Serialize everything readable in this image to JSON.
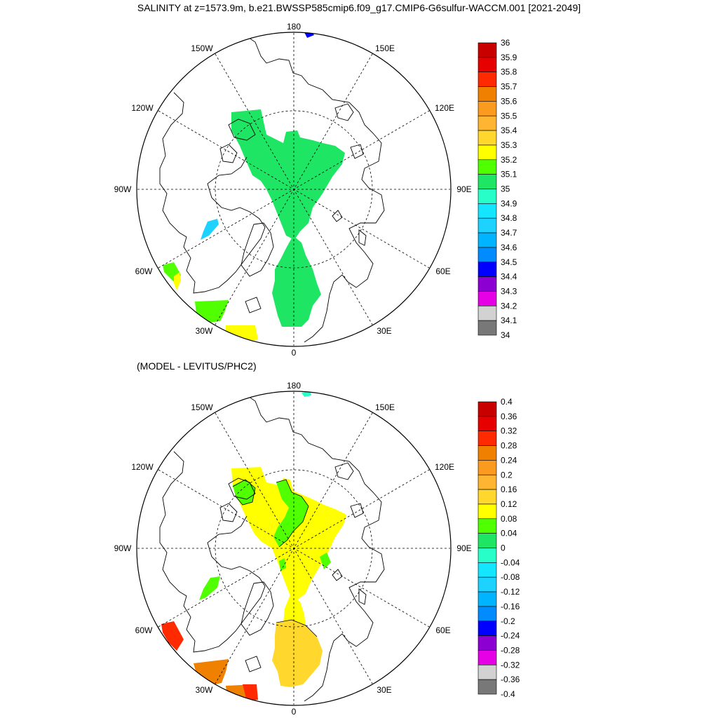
{
  "title": "SALINITY at z=1573.9m, b.e21.BWSSP585cmip6.f09_g17.CMIP6-G6sulfur-WACCM.001 [2021-2049]",
  "subtitle": "(MODEL - LEVITUS/PHC2)",
  "longitude_labels": {
    "lon_180": "180",
    "lon_150E": "150E",
    "lon_120E": "120E",
    "lon_90E": "90E",
    "lon_60E": "60E",
    "lon_30E": "30E",
    "lon_0": "0",
    "lon_30W": "30W",
    "lon_60W": "60W",
    "lon_90W": "90W",
    "lon_120W": "120W",
    "lon_150W": "150W"
  },
  "chart_data": [
    {
      "type": "heatmap",
      "projection": "north polar stereographic",
      "variable": "SALINITY",
      "depth": "z=1573.9m",
      "colorbar": {
        "labels": [
          "36",
          "35.9",
          "35.8",
          "35.7",
          "35.6",
          "35.5",
          "35.4",
          "35.3",
          "35.2",
          "35.1",
          "35",
          "34.9",
          "34.8",
          "34.7",
          "34.6",
          "34.5",
          "34.4",
          "34.3",
          "34.2",
          "34.1",
          "34"
        ],
        "colors": [
          "#c80000",
          "#e60000",
          "#ff2a00",
          "#f08000",
          "#fa9a1e",
          "#ffb432",
          "#ffd72d",
          "#ffff00",
          "#50ff00",
          "#1ee664",
          "#28ffc8",
          "#14e6ff",
          "#1ed2ff",
          "#00b4ff",
          "#008cff",
          "#0000ff",
          "#8c00d2",
          "#e600e6",
          "#d2d2d2",
          "#787878"
        ]
      },
      "field": [
        {
          "region": "central Arctic / Eurasian basin",
          "value_range": [
            35.0,
            35.1
          ]
        },
        {
          "region": "Baffin Bay",
          "value_range": [
            34.8,
            34.9
          ]
        },
        {
          "region": "Labrador Sea",
          "value_range": [
            35.1,
            35.3
          ]
        },
        {
          "region": "subpolar North Atlantic",
          "value_range": [
            35.1,
            35.2
          ]
        },
        {
          "region": "North Atlantic near 25W",
          "value_range": [
            35.2,
            35.3
          ]
        },
        {
          "region": "Bering Strait edge",
          "value_range": [
            34.4,
            34.5
          ]
        }
      ]
    },
    {
      "type": "heatmap",
      "projection": "north polar stereographic",
      "variable": "MODEL - LEVITUS/PHC2",
      "colorbar": {
        "labels": [
          "0.4",
          "0.36",
          "0.32",
          "0.28",
          "0.24",
          "0.2",
          "0.16",
          "0.12",
          "0.08",
          "0.04",
          "0",
          "-0.04",
          "-0.08",
          "-0.12",
          "-0.16",
          "-0.2",
          "-0.24",
          "-0.28",
          "-0.32",
          "-0.36",
          "-0.4"
        ],
        "colors": [
          "#c80000",
          "#e60000",
          "#ff2a00",
          "#f08000",
          "#fa9a1e",
          "#ffb432",
          "#ffd72d",
          "#ffff00",
          "#50ff00",
          "#1ee664",
          "#28ffc8",
          "#14e6ff",
          "#1ed2ff",
          "#00b4ff",
          "#008cff",
          "#0000ff",
          "#8c00d2",
          "#e600e6",
          "#d2d2d2",
          "#787878"
        ]
      },
      "field": [
        {
          "region": "central Arctic",
          "value_range": [
            0.08,
            0.12
          ]
        },
        {
          "region": "Lomonosov ridge band",
          "value_range": [
            0.04,
            0.08
          ]
        },
        {
          "region": "Nordic Seas",
          "value_range": [
            0.12,
            0.2
          ]
        },
        {
          "region": "Baffin Bay",
          "value_range": [
            0.04,
            0.08
          ]
        },
        {
          "region": "Labrador Sea",
          "value_range": [
            0.28,
            0.32
          ]
        },
        {
          "region": "subpolar North Atlantic",
          "value_range": [
            0.24,
            0.28
          ]
        },
        {
          "region": "North Atlantic near 20W",
          "value_range": [
            0.28,
            0.32
          ]
        },
        {
          "region": "Bering Strait edge",
          "value_range": [
            -0.04,
            0.0
          ]
        }
      ]
    }
  ]
}
